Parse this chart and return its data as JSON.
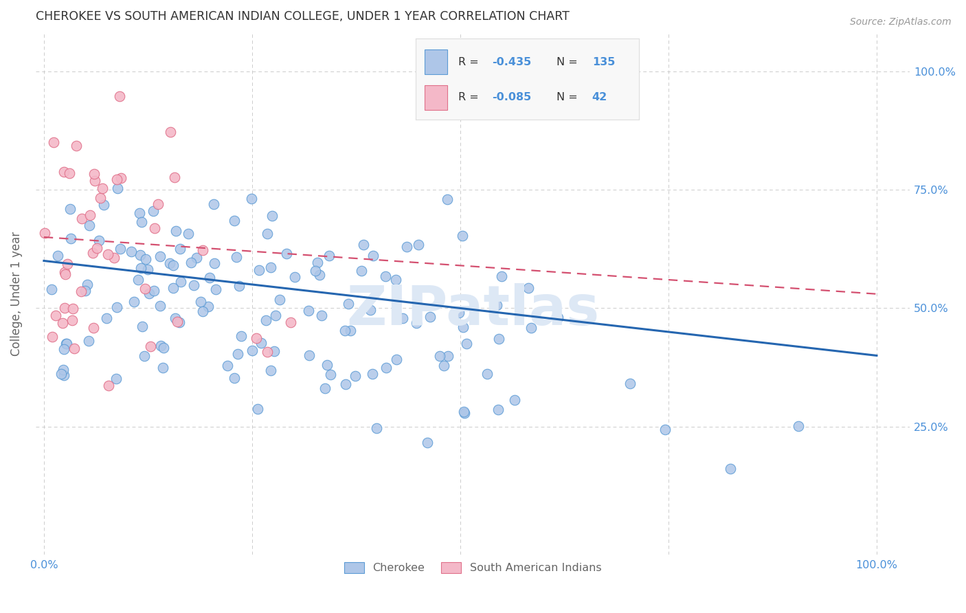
{
  "title": "CHEROKEE VS SOUTH AMERICAN INDIAN COLLEGE, UNDER 1 YEAR CORRELATION CHART",
  "source_text": "Source: ZipAtlas.com",
  "ylabel": "College, Under 1 year",
  "watermark": "ZIPatlas",
  "xlim": [
    0.0,
    1.0
  ],
  "ylim": [
    0.0,
    1.05
  ],
  "cherokee_color": "#aec6e8",
  "cherokee_edge_color": "#5b9bd5",
  "cherokee_line_color": "#2566b0",
  "south_american_color": "#f4b8c8",
  "south_american_edge_color": "#e0708a",
  "south_american_line_color": "#d45070",
  "cherokee_R": -0.435,
  "cherokee_N": 135,
  "south_american_R": -0.085,
  "south_american_N": 42,
  "title_color": "#333333",
  "axis_label_color": "#666666",
  "tick_label_color": "#4a90d9",
  "grid_color": "#cccccc",
  "background_color": "#ffffff",
  "source_color": "#999999",
  "watermark_color": "#dde8f5",
  "legend_r_color": "#333333",
  "legend_val_color": "#4a90d9",
  "legend_bg": "#f8f8f8",
  "legend_border": "#dddddd",
  "y_ticks": [
    0.25,
    0.5,
    0.75,
    1.0
  ],
  "y_tick_labels": [
    "25.0%",
    "50.0%",
    "75.0%",
    "100.0%"
  ],
  "x_ticks": [
    0.0,
    0.25,
    0.5,
    0.75,
    1.0
  ],
  "x_tick_labels": [
    "0.0%",
    "",
    "",
    "",
    "100.0%"
  ],
  "cherokee_seed": 7,
  "south_american_seed": 13
}
